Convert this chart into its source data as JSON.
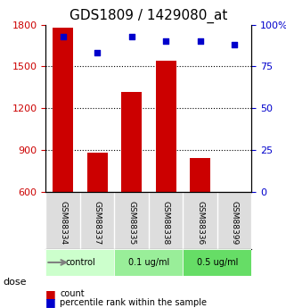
{
  "title": "GDS1809 / 1429080_at",
  "samples": [
    "GSM88334",
    "GSM88337",
    "GSM88335",
    "GSM88338",
    "GSM88336",
    "GSM88399"
  ],
  "counts": [
    1780,
    880,
    1320,
    1540,
    840,
    600
  ],
  "percentiles": [
    93,
    83,
    93,
    90,
    90,
    88
  ],
  "ylim_left": [
    600,
    1800
  ],
  "ylim_right": [
    0,
    100
  ],
  "yticks_left": [
    600,
    900,
    1200,
    1500,
    1800
  ],
  "yticks_right": [
    0,
    25,
    50,
    75,
    100
  ],
  "ytick_labels_right": [
    "0",
    "25",
    "50",
    "75",
    "100%"
  ],
  "bar_color": "#cc0000",
  "dot_color": "#0000cc",
  "grid_color": "#000000",
  "dose_groups": [
    {
      "label": "control",
      "span": [
        0,
        2
      ],
      "color": "#ccffcc"
    },
    {
      "label": "0.1 ug/ml",
      "span": [
        2,
        4
      ],
      "color": "#99ee99"
    },
    {
      "label": "0.5 ug/ml",
      "span": [
        4,
        6
      ],
      "color": "#66dd66"
    }
  ],
  "dose_label": "dose",
  "legend_count_label": "count",
  "legend_percentile_label": "percentile rank within the sample",
  "bar_width": 0.6,
  "xlabel_color": "#cc0000",
  "ylabel_right_color": "#0000cc",
  "background_plot": "#ffffff",
  "background_label": "#dddddd",
  "title_fontsize": 11,
  "tick_fontsize": 8,
  "label_fontsize": 8
}
